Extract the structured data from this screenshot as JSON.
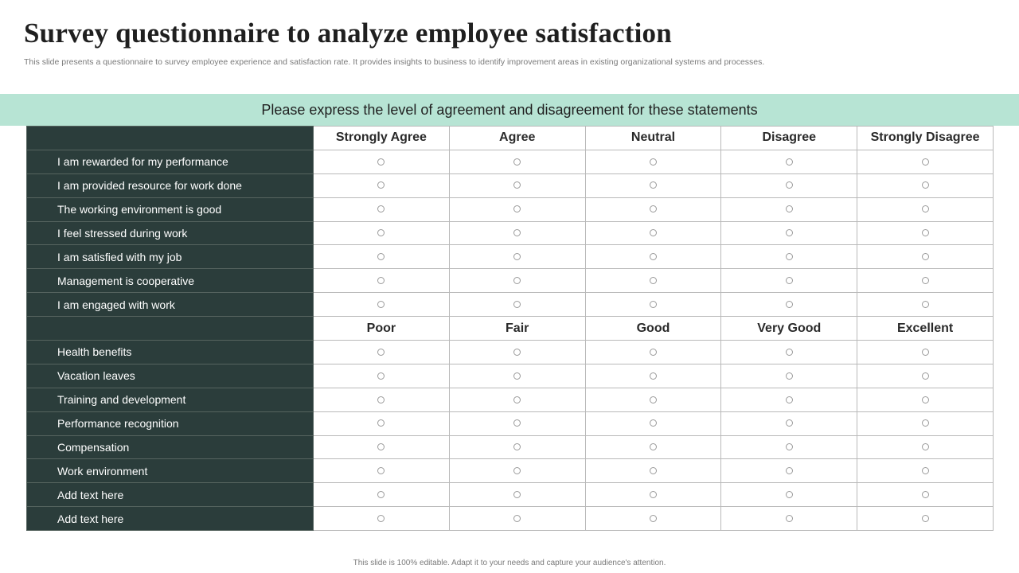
{
  "title": "Survey questionnaire to analyze employee satisfaction",
  "subtitle": "This slide presents a questionnaire to survey employee experience and satisfaction rate. It provides insights to business to identify improvement areas in existing organizational systems and processes.",
  "banner": "Please express the level of agreement and disagreement for these statements",
  "sections": [
    {
      "columns": [
        "Strongly Agree",
        "Agree",
        "Neutral",
        "Disagree",
        "Strongly Disagree"
      ],
      "statements": [
        "I am rewarded for my performance",
        "I am provided resource for work done",
        "The working environment is good",
        "I feel stressed during work",
        "I am satisfied with my job",
        "Management is cooperative",
        "I am engaged with work"
      ]
    },
    {
      "columns": [
        "Poor",
        "Fair",
        "Good",
        "Very Good",
        "Excellent"
      ],
      "statements": [
        "Health benefits",
        "Vacation leaves",
        "Training and development",
        "Performance recognition",
        "Compensation",
        "Work environment",
        "Add text here",
        "Add text here"
      ]
    }
  ],
  "footer": "This slide is 100% editable. Adapt it to your needs and capture your audience's attention."
}
